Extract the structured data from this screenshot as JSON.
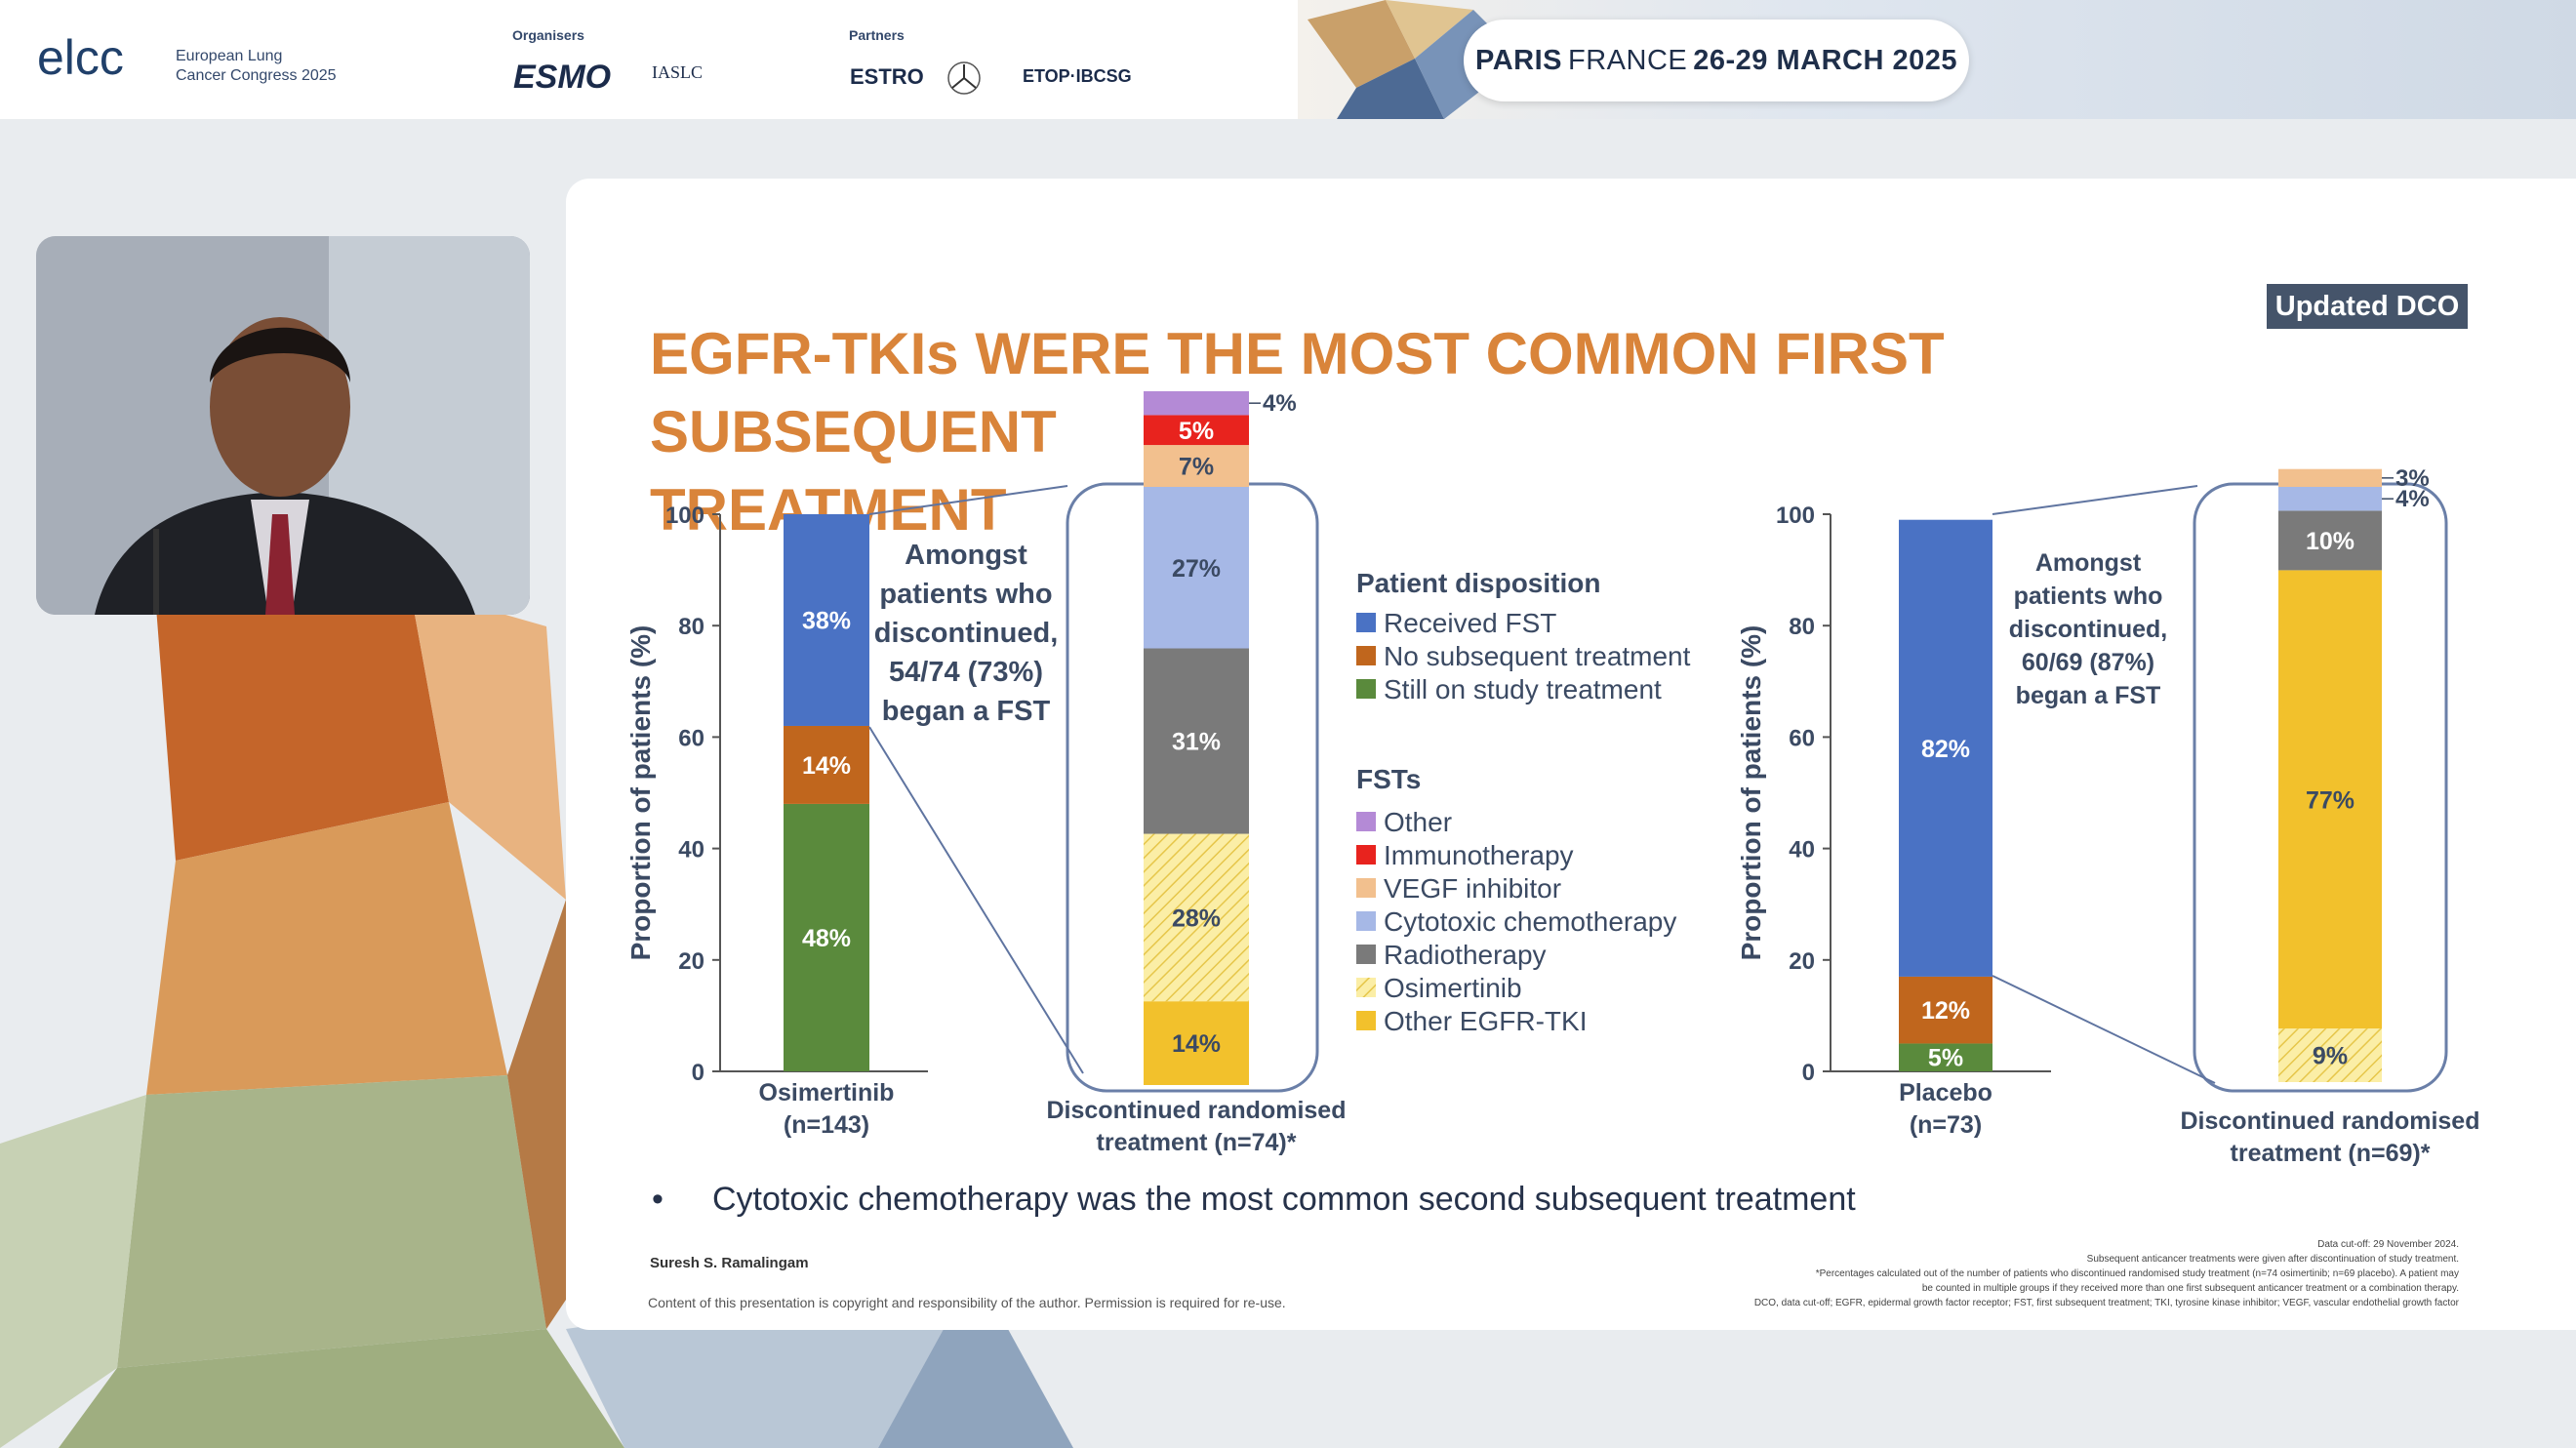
{
  "header": {
    "logo_main": "elcc",
    "logo_sub_line1": "European Lung",
    "logo_sub_line2": "Cancer Congress 2025",
    "organisers_heading": "Organisers",
    "partners_heading": "Partners",
    "organiser_logos": [
      "ESMO",
      "IASLC"
    ],
    "partner_logos": [
      "ESTRO",
      "ETOP·IBCSG"
    ],
    "event_city": "PARIS",
    "event_country": "FRANCE",
    "event_dates": "26-29 MARCH 2025"
  },
  "slide": {
    "badge": "Updated DCO",
    "title_line1": "EGFR-TKIs WERE THE MOST COMMON FIRST SUBSEQUENT",
    "title_line2": "TREATMENT",
    "bullet": "Cytotoxic chemotherapy was the most common second subsequent treatment",
    "author": "Suresh S. Ramalingam",
    "copyright": "Content of this presentation is copyright and responsibility of the author. Permission is required for re-use.",
    "footnotes": [
      "Data cut-off: 29 November 2024.",
      "Subsequent anticancer treatments were given after discontinuation of study treatment.",
      "*Percentages calculated out of the number of patients who discontinued randomised study treatment (n=74 osimertinib; n=69 placebo). A patient may",
      "be counted in multiple groups if they received more than one first subsequent anticancer treatment or a combination therapy.",
      "DCO, data cut-off; EGFR, epidermal growth factor receptor; FST, first subsequent treatment; TKI, tyrosine kinase inhibitor; VEGF, vascular endothelial growth factor"
    ]
  },
  "colors": {
    "title_orange": "#d9843a",
    "received_fst": "#4a72c4",
    "no_subsequent": "#c0661d",
    "still_on_study": "#5a8a3c",
    "other": "#b48ad6",
    "immunotherapy": "#e8231e",
    "vegf_inhibitor": "#f2c08e",
    "cytotoxic_chemo": "#a6b8e6",
    "radiotherapy": "#7a7a7a",
    "osimertinib_fill": "#fbeea6",
    "other_egfr_tki": "#f2c12c",
    "badge_bg": "#45546a"
  },
  "legend": {
    "disposition_title": "Patient disposition",
    "disposition_items": [
      "Received FST",
      "No subsequent treatment",
      "Still on study treatment"
    ],
    "fst_title": "FSTs",
    "fst_items": [
      "Other",
      "Immunotherapy",
      "VEGF inhibitor",
      "Cytotoxic chemotherapy",
      "Radiotherapy",
      "Osimertinib",
      "Other EGFR-TKI"
    ]
  },
  "chart_data": [
    {
      "type": "bar",
      "stacked": true,
      "ylabel": "Proportion of patients (%)",
      "ylim": [
        0,
        100
      ],
      "yticks": [
        0,
        20,
        40,
        60,
        80,
        100
      ],
      "categories": [
        "Osimertinib\n(n=143)"
      ],
      "series": [
        {
          "name": "Still on study treatment",
          "values": [
            48
          ],
          "label": "48%"
        },
        {
          "name": "No subsequent treatment",
          "values": [
            14
          ],
          "label": "14%"
        },
        {
          "name": "Received FST",
          "values": [
            38
          ],
          "label": "38%"
        }
      ],
      "annotation": [
        "Amongst",
        "patients who",
        "discontinued,",
        "54/74 (73%)",
        "began a FST"
      ]
    },
    {
      "type": "bar",
      "stacked": true,
      "categories": [
        "Discontinued randomised\ntreatment (n=74)*"
      ],
      "series": [
        {
          "name": "Other EGFR-TKI",
          "values": [
            14
          ],
          "label": "14%"
        },
        {
          "name": "Osimertinib",
          "values": [
            28
          ],
          "label": "28%"
        },
        {
          "name": "Radiotherapy",
          "values": [
            31
          ],
          "label": "31%"
        },
        {
          "name": "Cytotoxic chemotherapy",
          "values": [
            27
          ],
          "label": "27%"
        },
        {
          "name": "VEGF inhibitor",
          "values": [
            7
          ],
          "label": "7%"
        },
        {
          "name": "Immunotherapy",
          "values": [
            5
          ],
          "label": "5%"
        },
        {
          "name": "Other",
          "values": [
            4
          ],
          "label": "4%"
        }
      ]
    },
    {
      "type": "bar",
      "stacked": true,
      "ylabel": "Proportion of patients (%)",
      "ylim": [
        0,
        100
      ],
      "yticks": [
        0,
        20,
        40,
        60,
        80,
        100
      ],
      "categories": [
        "Placebo\n(n=73)"
      ],
      "series": [
        {
          "name": "Still on study treatment",
          "values": [
            5
          ],
          "label": "5%"
        },
        {
          "name": "No subsequent treatment",
          "values": [
            12
          ],
          "label": "12%"
        },
        {
          "name": "Received FST",
          "values": [
            82
          ],
          "label": "82%"
        }
      ],
      "annotation": [
        "Amongst",
        "patients who",
        "discontinued,",
        "60/69 (87%)",
        "began a FST"
      ]
    },
    {
      "type": "bar",
      "stacked": true,
      "categories": [
        "Discontinued randomised\ntreatment (n=69)*"
      ],
      "series": [
        {
          "name": "Osimertinib",
          "values": [
            9
          ],
          "label": "9%"
        },
        {
          "name": "Other EGFR-TKI",
          "values": [
            77
          ],
          "label": "77%"
        },
        {
          "name": "Radiotherapy",
          "values": [
            10
          ],
          "label": "10%"
        },
        {
          "name": "Cytotoxic chemotherapy",
          "values": [
            4
          ],
          "label": "4%"
        },
        {
          "name": "VEGF inhibitor",
          "values": [
            3
          ],
          "label": "3%"
        }
      ]
    }
  ]
}
